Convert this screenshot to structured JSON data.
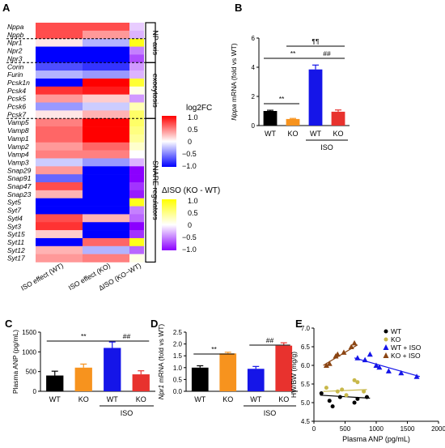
{
  "panel_letters": {
    "A": "A",
    "B": "B",
    "C": "C",
    "D": "D",
    "E": "E"
  },
  "heatmap": {
    "genes": [
      "Nppa",
      "Nppb",
      "Npr1",
      "Npr2",
      "Npr3",
      "Corin",
      "Furin",
      "Pcsk1n",
      "Pcsk4",
      "Pcsk5",
      "Pcsk6",
      "Pcsk7",
      "Vamp5",
      "Vamp8",
      "Vamp1",
      "Vamp2",
      "Vamp4",
      "Vamp3",
      "Snap29",
      "Snap91",
      "Snap47",
      "Snap23",
      "Syt5",
      "Syt7",
      "Sytl4",
      "Syt3",
      "Syt15",
      "Syt11",
      "Syt12",
      "Syt17"
    ],
    "columns": [
      "ISO effect (WT)",
      "ISO effect (KO)",
      "ΔISO (KO−WT)"
    ],
    "groups": [
      {
        "label": "NP axis",
        "from": 0,
        "to": 4
      },
      {
        "label": "exocytosis",
        "from": 5,
        "to": 11
      },
      {
        "label": "SNARE regulators",
        "from": 12,
        "to": 29
      }
    ],
    "log2fc_wt": [
      0.7,
      0.7,
      0.1,
      -1.0,
      -1.0,
      -0.7,
      -0.3,
      -1.0,
      0.8,
      0.4,
      -0.4,
      0.1,
      0.5,
      0.6,
      0.6,
      0.4,
      0.5,
      -0.2,
      0.4,
      -0.6,
      0.7,
      0.3,
      -1.0,
      -1.0,
      0.7,
      0.8,
      0.2,
      -1.0,
      0.3,
      0.4
    ],
    "log2fc_ko": [
      0.7,
      0.4,
      -0.3,
      -1.0,
      -1.0,
      -0.8,
      -0.4,
      1.0,
      0.9,
      0.2,
      -0.2,
      0.3,
      1.0,
      1.0,
      1.0,
      0.6,
      0.5,
      -0.4,
      -1.0,
      -1.0,
      -1.0,
      -1.0,
      -1.0,
      -1.0,
      0.3,
      -1.0,
      -1.0,
      0.6,
      -0.3,
      0.5
    ],
    "delta": [
      -0.2,
      -0.3,
      0.9,
      -0.5,
      -0.7,
      -0.4,
      -0.3,
      0.8,
      0.1,
      -0.4,
      0.3,
      0.6,
      0.6,
      0.5,
      0.4,
      0.2,
      0.0,
      -0.3,
      -1.0,
      -1.0,
      -0.8,
      -0.9,
      0.9,
      -0.5,
      -0.6,
      -1.0,
      -0.8,
      0.9,
      -0.6,
      0.1
    ],
    "dashed_after_rows": [
      1,
      4,
      11
    ],
    "legend1": {
      "title": "log2FC",
      "ticks": [
        "1.0",
        "0.5",
        "0",
        "−0.5",
        "−1.0"
      ]
    },
    "legend2": {
      "title": "ΔISO (KO - WT)",
      "ticks": [
        "1.0",
        "0.5",
        "0",
        "−0.5",
        "−1.0"
      ]
    }
  },
  "chart_data": [
    {
      "panel": "B",
      "type": "bar",
      "ylabel_gene": "Nppa",
      "ylabel_rest": " mRNA (fold vs WT)",
      "ylim": [
        0,
        6
      ],
      "yticks": [
        "0",
        "2",
        "4",
        "6"
      ],
      "categories": [
        "WT",
        "KO",
        "WT",
        "KO"
      ],
      "values": [
        1.0,
        0.45,
        3.85,
        0.95
      ],
      "errors": [
        0.05,
        0.04,
        0.3,
        0.12
      ],
      "colors": [
        "#000000",
        "#f7931e",
        "#1515e8",
        "#e8322e"
      ],
      "group_label": "ISO",
      "annotations": [
        "**",
        "**",
        "¶¶",
        "##"
      ]
    },
    {
      "panel": "C",
      "type": "bar",
      "ylabel": "Plasma ANP (pg/mL)",
      "ylim": [
        0,
        1500
      ],
      "yticks": [
        "0",
        "500",
        "1000",
        "1500"
      ],
      "categories": [
        "WT",
        "KO",
        "WT",
        "KO"
      ],
      "values": [
        400,
        600,
        1100,
        430
      ],
      "errors": [
        110,
        90,
        150,
        90
      ],
      "colors": [
        "#000000",
        "#f7931e",
        "#1515e8",
        "#e8322e"
      ],
      "group_label": "ISO",
      "annotations": [
        "**",
        "##"
      ]
    },
    {
      "panel": "D",
      "type": "bar",
      "ylabel_gene": "Npr1",
      "ylabel_rest": " mRNA (fold vs WT)",
      "ylim": [
        0,
        2.5
      ],
      "yticks": [
        "0.0",
        "0.5",
        "1.0",
        "1.5",
        "2.0",
        "2.5"
      ],
      "categories": [
        "WT",
        "KO",
        "WT",
        "KO"
      ],
      "values": [
        1.0,
        1.6,
        0.95,
        1.93
      ],
      "errors": [
        0.08,
        0.05,
        0.1,
        0.12
      ],
      "colors": [
        "#000000",
        "#f7931e",
        "#1515e8",
        "#e8322e"
      ],
      "group_label": "ISO",
      "annotations": [
        "**",
        "##"
      ]
    },
    {
      "panel": "E",
      "type": "scatter",
      "xlabel": "Plasma ANP (pg/mL)",
      "ylabel": "HW/BW (mg/g)",
      "xlim": [
        0,
        2000
      ],
      "ylim": [
        4.5,
        7.0
      ],
      "xticks": [
        "0",
        "500",
        "1000",
        "1500",
        "2000"
      ],
      "yticks": [
        "4.5",
        "5.0",
        "5.5",
        "6.0",
        "6.5",
        "7.0"
      ],
      "series": [
        {
          "name": "WT",
          "color": "#000000",
          "marker": "circle",
          "points": [
            [
              120,
              5.25
            ],
            [
              250,
              5.05
            ],
            [
              300,
              4.9
            ],
            [
              420,
              5.15
            ],
            [
              650,
              5.0
            ],
            [
              700,
              5.1
            ],
            [
              850,
              5.15
            ]
          ],
          "fit": [
            [
              100,
              5.2
            ],
            [
              900,
              5.12
            ]
          ]
        },
        {
          "name": "KO",
          "color": "#c8b84a",
          "marker": "circle",
          "points": [
            [
              200,
              5.4
            ],
            [
              380,
              5.3
            ],
            [
              450,
              5.35
            ],
            [
              520,
              5.2
            ],
            [
              650,
              5.6
            ],
            [
              700,
              5.55
            ],
            [
              800,
              5.3
            ]
          ],
          "fit": [
            [
              150,
              5.3
            ],
            [
              850,
              5.35
            ]
          ]
        },
        {
          "name": "WT + ISO",
          "color": "#1515e8",
          "marker": "triangle",
          "points": [
            [
              700,
              6.2
            ],
            [
              820,
              6.15
            ],
            [
              900,
              6.3
            ],
            [
              1000,
              6.0
            ],
            [
              1050,
              5.95
            ],
            [
              1200,
              5.85
            ],
            [
              1400,
              5.8
            ],
            [
              1650,
              5.7
            ]
          ],
          "fit": [
            [
              650,
              6.2
            ],
            [
              1700,
              5.7
            ]
          ]
        },
        {
          "name": "KO + ISO",
          "color": "#8b4513",
          "marker": "triangle",
          "points": [
            [
              200,
              6.0
            ],
            [
              250,
              6.05
            ],
            [
              350,
              6.25
            ],
            [
              380,
              6.3
            ],
            [
              480,
              6.35
            ],
            [
              600,
              6.5
            ],
            [
              650,
              6.6
            ]
          ],
          "fit": [
            [
              150,
              6.0
            ],
            [
              700,
              6.55
            ]
          ]
        }
      ]
    }
  ]
}
